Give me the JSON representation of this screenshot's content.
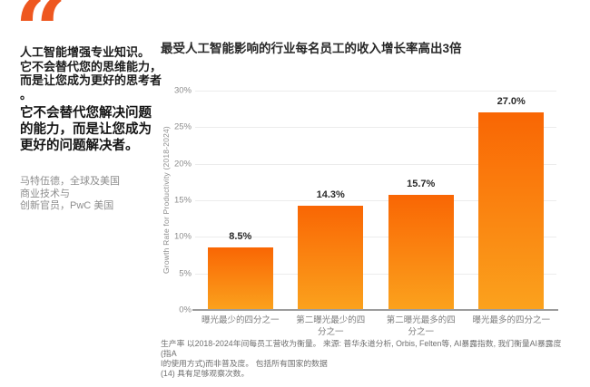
{
  "colors": {
    "accent_orange": "#ee571f",
    "bar_gradient_top": "#f96604",
    "bar_gradient_bottom": "#fba21d",
    "value_label": "#2a2a2a",
    "axis_gray": "#8d8d8d"
  },
  "icons": {
    "quote": "“"
  },
  "quote": {
    "paragraph1": "人工智能增强专业知识。\n它不会替代您的思维能力，\n而是让您成为更好的思考者\n。",
    "paragraph2": "它不会替代您解决问题\n的能力，而是让您成为\n更好的问题解决者。",
    "attribution": "马特伍德，全球及美国\n商业技术与\n创新官员，PwC 美国"
  },
  "chart_data": {
    "type": "bar",
    "title": "最受人工智能影响的行业每名员工的收入增长率高出3倍",
    "ylabel": "Growth Rate for Productivity (2018-2024)",
    "xlabel": "",
    "categories": [
      "曝光最少的四分之一",
      "第二曝光最少的四\n分之一",
      "第二曝光最多的四\n分之一",
      "曝光最多的四分之一"
    ],
    "values": [
      8.5,
      14.3,
      15.7,
      27.0
    ],
    "value_labels": [
      "8.5%",
      "14.3%",
      "15.7%",
      "27.0%"
    ],
    "ylim": [
      0,
      30
    ],
    "yticks": [
      {
        "value": 0,
        "label": "0%"
      },
      {
        "value": 5,
        "label": "5%"
      },
      {
        "value": 10,
        "label": "10%"
      },
      {
        "value": 15,
        "label": "15%"
      },
      {
        "value": 20,
        "label": "20%"
      },
      {
        "value": 25,
        "label": "25%"
      },
      {
        "value": 30,
        "label": "30%"
      }
    ],
    "grid": true,
    "legend": "none",
    "footnote": "生产率 以2018-2024年间每员工营收为衡量。 来源: 普华永道分析, Orbis, Felten等, AI暴露指数, 我们衡量AI暴露度(指A\nI的使用方式)而非普及度。 包括所有国家的数据\n(14) 具有足够观察次数。"
  }
}
